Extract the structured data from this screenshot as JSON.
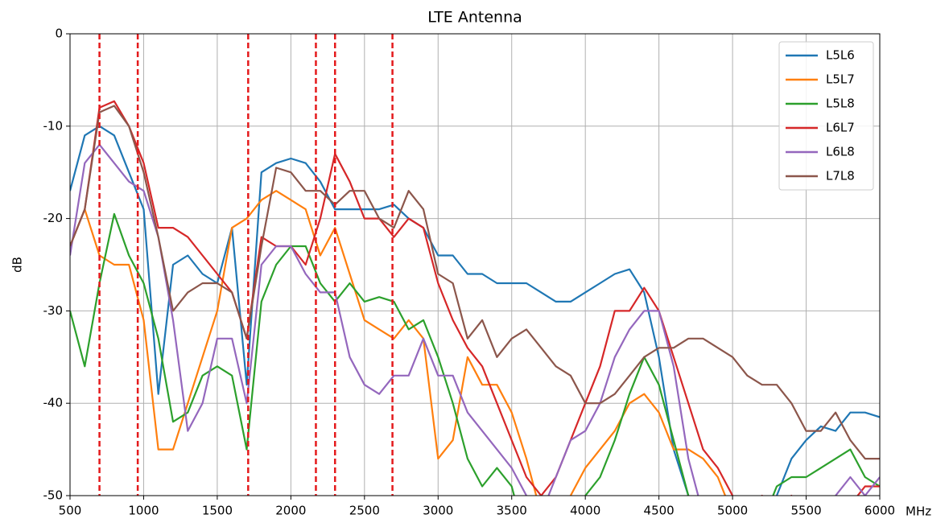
{
  "chart_data": {
    "type": "line",
    "title": "LTE Antenna",
    "ylabel": "dB",
    "xlabel": "MHz",
    "x": [
      500,
      600,
      700,
      800,
      900,
      1000,
      1100,
      1200,
      1300,
      1400,
      1500,
      1600,
      1700,
      1800,
      1900,
      2000,
      2100,
      2200,
      2300,
      2400,
      2500,
      2600,
      2700,
      2800,
      2900,
      3000,
      3100,
      3200,
      3300,
      3400,
      3500,
      3600,
      3700,
      3800,
      3900,
      4000,
      4100,
      4200,
      4300,
      4400,
      4500,
      4600,
      4700,
      4800,
      4900,
      5000,
      5100,
      5200,
      5300,
      5400,
      5500,
      5600,
      5700,
      5800,
      5900,
      6000
    ],
    "series": [
      {
        "name": "L5L6",
        "color": "#1f77b4",
        "values": [
          -17,
          -11,
          -10,
          -11,
          -15,
          -19,
          -39,
          -25,
          -24,
          -26,
          -27,
          -21,
          -38,
          -15,
          -14,
          -13.5,
          -14,
          -16,
          -19,
          -19,
          -19,
          -19,
          -18.5,
          -20,
          -21,
          -24,
          -24,
          -26,
          -26,
          -27,
          -27,
          -27,
          -28,
          -29,
          -29,
          -28,
          -27,
          -26,
          -25.5,
          -28,
          -35,
          -45,
          -50,
          -51,
          -52,
          -52,
          -52,
          -52,
          -50,
          -46,
          -44,
          -42.5,
          -43,
          -41,
          -41,
          -41.5
        ]
      },
      {
        "name": "L5L7",
        "color": "#ff7f0e",
        "values": [
          -23,
          -19,
          -24,
          -25,
          -25,
          -31,
          -45,
          -45,
          -40,
          -35,
          -30,
          -21,
          -20,
          -18,
          -17,
          -18,
          -19,
          -24,
          -21,
          -26,
          -31,
          -32,
          -33,
          -31,
          -33,
          -46,
          -44,
          -35,
          -38,
          -38,
          -41,
          -46,
          -52,
          -51,
          -50,
          -47,
          -45,
          -43,
          -40,
          -39,
          -41,
          -45,
          -45,
          -46,
          -48,
          -52,
          -55,
          -55,
          -55,
          -55,
          -55,
          -55,
          -55,
          -55,
          -55,
          -55
        ]
      },
      {
        "name": "L5L8",
        "color": "#2ca02c",
        "values": [
          -30,
          -36,
          -27,
          -19.5,
          -24,
          -27,
          -33,
          -42,
          -41,
          -37,
          -36,
          -37,
          -45,
          -29,
          -25,
          -23,
          -23,
          -27,
          -29,
          -27,
          -29,
          -28.5,
          -29,
          -32,
          -31,
          -35,
          -40,
          -46,
          -49,
          -47,
          -49,
          -55,
          -55,
          -55,
          -55,
          -50,
          -48,
          -44,
          -39,
          -35,
          -38,
          -44,
          -50,
          -55,
          -55,
          -55,
          -55,
          -53,
          -49,
          -48,
          -48,
          -47,
          -46,
          -45,
          -48,
          -49
        ]
      },
      {
        "name": "L6L7",
        "color": "#d62728",
        "values": [
          -23,
          -19,
          -8,
          -7.3,
          -10,
          -14,
          -21,
          -21,
          -22,
          -24,
          -26,
          -28,
          -33,
          -22,
          -23,
          -23,
          -25,
          -20,
          -13,
          -16,
          -20,
          -20,
          -22,
          -20,
          -21,
          -27,
          -31,
          -34,
          -36,
          -40,
          -44,
          -48,
          -50,
          -48,
          -44,
          -40,
          -36,
          -30,
          -30,
          -27.5,
          -30,
          -35,
          -40,
          -45,
          -47,
          -50,
          -52,
          -50,
          -51,
          -50,
          -52,
          -52,
          -52,
          -51,
          -49,
          -49
        ]
      },
      {
        "name": "L6L8",
        "color": "#9467bd",
        "values": [
          -24,
          -14,
          -12,
          -14,
          -16,
          -17,
          -22,
          -31,
          -43,
          -40,
          -33,
          -33,
          -40,
          -25,
          -23,
          -23,
          -26,
          -28,
          -28,
          -35,
          -38,
          -39,
          -37,
          -37,
          -33,
          -37,
          -37,
          -41,
          -43,
          -45,
          -47,
          -50,
          -52,
          -48,
          -44,
          -43,
          -40,
          -35,
          -32,
          -30,
          -30,
          -36,
          -46,
          -52,
          -55,
          -55,
          -55,
          -55,
          -55,
          -55,
          -55,
          -55,
          -50,
          -48,
          -50,
          -48
        ]
      },
      {
        "name": "L7L8",
        "color": "#8c564b",
        "values": [
          -23,
          -19,
          -8.5,
          -7.8,
          -10,
          -15,
          -22,
          -30,
          -28,
          -27,
          -27,
          -28,
          -33,
          -23,
          -14.5,
          -15,
          -17,
          -17,
          -18.5,
          -17,
          -17,
          -20,
          -21,
          -17,
          -19,
          -26,
          -27,
          -33,
          -31,
          -35,
          -33,
          -32,
          -34,
          -36,
          -37,
          -40,
          -40,
          -39,
          -37,
          -35,
          -34,
          -34,
          -33,
          -33,
          -34,
          -35,
          -37,
          -38,
          -38,
          -40,
          -43,
          -43,
          -41,
          -44,
          -46,
          -46
        ]
      }
    ],
    "vlines": [
      700,
      960,
      1710,
      2170,
      2300,
      2690
    ],
    "vline_color": "#e41a1c",
    "xlim": [
      500,
      6000
    ],
    "ylim": [
      -50,
      0
    ],
    "xticks": [
      500,
      1000,
      1500,
      2000,
      2500,
      3000,
      3500,
      4000,
      4500,
      5000,
      5500,
      6000
    ],
    "yticks": [
      0,
      -10,
      -20,
      -30,
      -40,
      -50
    ],
    "grid": true,
    "legend": "upper right"
  }
}
